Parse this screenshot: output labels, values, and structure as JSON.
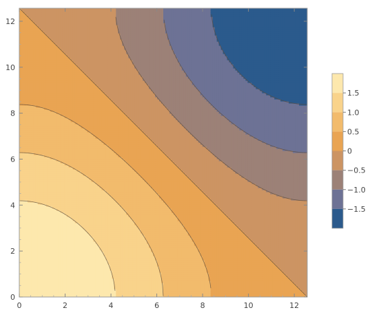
{
  "chart_data": {
    "type": "contour",
    "title": "",
    "xlabel": "",
    "ylabel": "",
    "xlim": [
      0,
      12.566
    ],
    "ylim": [
      0,
      12.566
    ],
    "x_ticks": [
      0,
      2,
      4,
      6,
      8,
      10,
      12
    ],
    "y_ticks": [
      0,
      2,
      4,
      6,
      8,
      10,
      12
    ],
    "function_note": "contour levels of cos(x/4)+cos(y/4) over 0..4π",
    "levels": [
      -2,
      -1.5,
      -1,
      -0.5,
      0,
      0.5,
      1,
      1.5,
      2
    ],
    "legend": {
      "placement": "right",
      "ticks": [
        {
          "value": 1.5,
          "label": "1.5"
        },
        {
          "value": 1.0,
          "label": "1.0"
        },
        {
          "value": 0.5,
          "label": "0.5"
        },
        {
          "value": 0,
          "label": "0"
        },
        {
          "value": -0.5,
          "label": "−0.5"
        },
        {
          "value": -1.0,
          "label": "−1.0"
        },
        {
          "value": -1.5,
          "label": "−1.5"
        }
      ]
    },
    "bands": [
      {
        "lo": 1.5,
        "hi": 2.0,
        "color": "#fde8ad"
      },
      {
        "lo": 1.0,
        "hi": 1.5,
        "color": "#f9d38b"
      },
      {
        "lo": 0.5,
        "hi": 1.0,
        "color": "#f2bb6c"
      },
      {
        "lo": 0.0,
        "hi": 0.5,
        "color": "#e9a453"
      },
      {
        "lo": -0.5,
        "hi": 0.0,
        "color": "#cc9463"
      },
      {
        "lo": -1.0,
        "hi": -0.5,
        "color": "#9c8177"
      },
      {
        "lo": -1.5,
        "hi": -1.0,
        "color": "#6d7295"
      },
      {
        "lo": -2.0,
        "hi": -1.5,
        "color": "#2b5a8c"
      }
    ],
    "grid": false
  }
}
